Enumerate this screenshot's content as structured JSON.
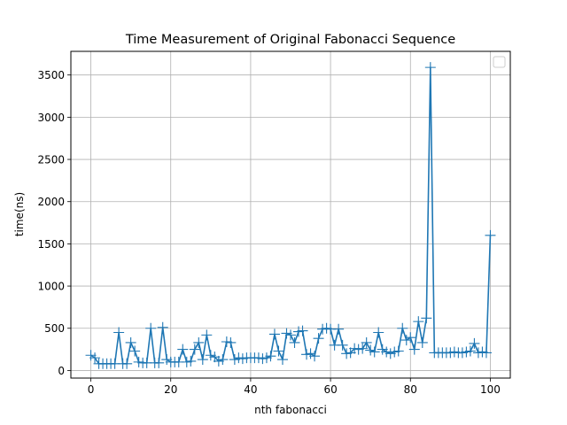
{
  "chart_data": {
    "type": "line",
    "title": "Time Measurement of Original Fabonacci Sequence",
    "xlabel": "nth fabonacci",
    "ylabel": "time(ns)",
    "xlim": [
      -5,
      105
    ],
    "ylim": [
      -90,
      3780
    ],
    "xticks": [
      0,
      20,
      40,
      60,
      80,
      100
    ],
    "yticks": [
      0,
      500,
      1000,
      1500,
      2000,
      2500,
      3000,
      3500
    ],
    "grid": true,
    "legend": "top-right",
    "marker": "plus",
    "series": [
      {
        "color": "#1f77b4",
        "x": [
          0,
          1,
          2,
          3,
          4,
          5,
          6,
          7,
          8,
          9,
          10,
          11,
          12,
          13,
          14,
          15,
          16,
          17,
          18,
          19,
          20,
          21,
          22,
          23,
          24,
          25,
          26,
          27,
          28,
          29,
          30,
          31,
          32,
          33,
          34,
          35,
          36,
          37,
          38,
          39,
          40,
          41,
          42,
          43,
          44,
          45,
          46,
          47,
          48,
          49,
          50,
          51,
          52,
          53,
          54,
          55,
          56,
          57,
          58,
          59,
          60,
          61,
          62,
          63,
          64,
          65,
          66,
          67,
          68,
          69,
          70,
          71,
          72,
          73,
          74,
          75,
          76,
          77,
          78,
          79,
          80,
          81,
          82,
          83,
          84,
          85,
          86,
          87,
          88,
          89,
          90,
          91,
          92,
          93,
          94,
          95,
          96,
          97,
          98,
          99,
          100
        ],
        "values": [
          180,
          150,
          80,
          80,
          80,
          80,
          80,
          450,
          80,
          80,
          330,
          230,
          100,
          90,
          90,
          500,
          90,
          90,
          510,
          130,
          100,
          100,
          100,
          250,
          100,
          110,
          250,
          330,
          130,
          420,
          180,
          160,
          110,
          130,
          340,
          330,
          130,
          150,
          140,
          150,
          150,
          150,
          150,
          140,
          150,
          170,
          430,
          230,
          130,
          440,
          420,
          330,
          460,
          470,
          190,
          200,
          170,
          380,
          490,
          500,
          490,
          300,
          490,
          300,
          200,
          210,
          260,
          250,
          260,
          330,
          240,
          220,
          450,
          250,
          220,
          200,
          220,
          230,
          500,
          360,
          390,
          250,
          580,
          330,
          620,
          3590,
          210,
          210,
          210,
          210,
          210,
          220,
          210,
          210,
          220,
          230,
          320,
          210,
          220,
          210,
          1600
        ]
      }
    ]
  }
}
